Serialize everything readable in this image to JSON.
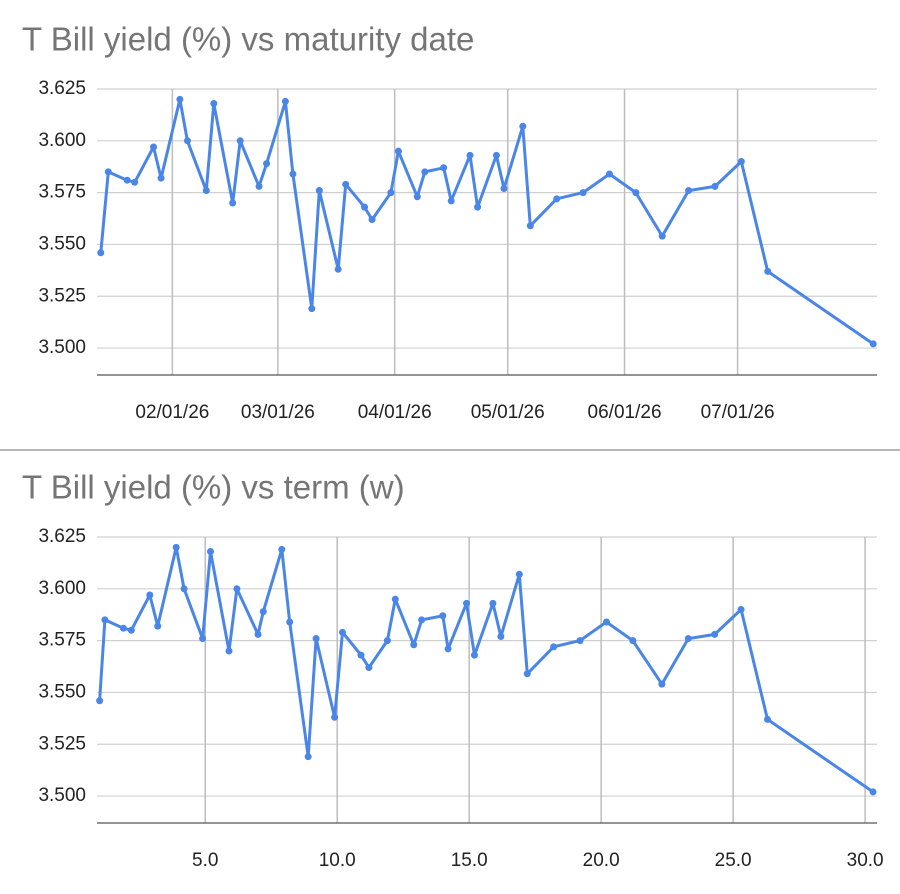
{
  "chart_data": [
    {
      "type": "line",
      "title": "T Bill yield (%) vs maturity date",
      "color": "#4a86e8",
      "x": [
        "2026-01-13",
        "2026-01-15",
        "2026-01-20",
        "2026-01-22",
        "2026-01-27",
        "2026-01-29",
        "2026-02-03",
        "2026-02-05",
        "2026-02-10",
        "2026-02-12",
        "2026-02-17",
        "2026-02-19",
        "2026-02-24",
        "2026-02-26",
        "2026-03-03",
        "2026-03-05",
        "2026-03-10",
        "2026-03-12",
        "2026-03-17",
        "2026-03-19",
        "2026-03-24",
        "2026-03-26",
        "2026-03-31",
        "2026-04-02",
        "2026-04-07",
        "2026-04-09",
        "2026-04-14",
        "2026-04-16",
        "2026-04-21",
        "2026-04-23",
        "2026-04-28",
        "2026-04-30",
        "2026-05-05",
        "2026-05-07",
        "2026-05-14",
        "2026-05-21",
        "2026-05-28",
        "2026-06-04",
        "2026-06-11",
        "2026-06-18",
        "2026-06-25",
        "2026-07-02",
        "2026-07-09",
        "2026-08-06"
      ],
      "values": [
        3.546,
        3.585,
        3.581,
        3.58,
        3.597,
        3.582,
        3.62,
        3.6,
        3.576,
        3.618,
        3.57,
        3.6,
        3.578,
        3.589,
        3.619,
        3.584,
        3.519,
        3.576,
        3.538,
        3.579,
        3.568,
        3.562,
        3.575,
        3.595,
        3.573,
        3.585,
        3.587,
        3.571,
        3.593,
        3.568,
        3.593,
        3.577,
        3.607,
        3.559,
        3.572,
        3.575,
        3.584,
        3.575,
        3.554,
        3.576,
        3.578,
        3.59,
        3.537,
        3.502
      ],
      "xlim": [
        "2026-01-12",
        "2026-08-07"
      ],
      "xticks": [
        {
          "value": "2026-02-01",
          "label": "02/01/26"
        },
        {
          "value": "2026-03-01",
          "label": "03/01/26"
        },
        {
          "value": "2026-04-01",
          "label": "04/01/26"
        },
        {
          "value": "2026-05-01",
          "label": "05/01/26"
        },
        {
          "value": "2026-06-01",
          "label": "06/01/26"
        },
        {
          "value": "2026-07-01",
          "label": "07/01/26"
        }
      ],
      "ylim": [
        3.487,
        3.625
      ],
      "yticks": [
        {
          "value": 3.5,
          "label": "3.500"
        },
        3.525,
        {
          "value": 3.55,
          "label": "3.550"
        },
        3.575,
        {
          "value": 3.6,
          "label": "3.600"
        },
        3.625
      ],
      "grid": true
    },
    {
      "type": "line",
      "title": "T Bill yield (%) vs term (w)",
      "color": "#4a86e8",
      "x": [
        1.0,
        1.2,
        1.9,
        2.2,
        2.9,
        3.2,
        3.9,
        4.2,
        4.9,
        5.2,
        5.9,
        6.2,
        7.0,
        7.2,
        7.9,
        8.2,
        8.9,
        9.2,
        9.9,
        10.2,
        10.9,
        11.2,
        11.9,
        12.2,
        12.9,
        13.2,
        14.0,
        14.2,
        14.9,
        15.2,
        15.9,
        16.2,
        16.9,
        17.2,
        18.2,
        19.2,
        20.2,
        21.2,
        22.3,
        23.3,
        24.3,
        25.3,
        26.3,
        30.3
      ],
      "values": [
        3.546,
        3.585,
        3.581,
        3.58,
        3.597,
        3.582,
        3.62,
        3.6,
        3.576,
        3.618,
        3.57,
        3.6,
        3.578,
        3.589,
        3.619,
        3.584,
        3.519,
        3.576,
        3.538,
        3.579,
        3.568,
        3.562,
        3.575,
        3.595,
        3.573,
        3.585,
        3.587,
        3.571,
        3.593,
        3.568,
        3.593,
        3.577,
        3.607,
        3.559,
        3.572,
        3.575,
        3.584,
        3.575,
        3.554,
        3.576,
        3.578,
        3.59,
        3.537,
        3.502
      ],
      "xlim": [
        0.9,
        30.45
      ],
      "xticks": [
        {
          "value": 5,
          "label": "5.0"
        },
        {
          "value": 10,
          "label": "10.0"
        },
        {
          "value": 15,
          "label": "15.0"
        },
        {
          "value": 20,
          "label": "20.0"
        },
        {
          "value": 25,
          "label": "25.0"
        },
        {
          "value": 30,
          "label": "30.0"
        }
      ],
      "ylim": [
        3.487,
        3.625
      ],
      "yticks": [
        {
          "value": 3.5,
          "label": "3.500"
        },
        3.525,
        {
          "value": 3.55,
          "label": "3.550"
        },
        3.575,
        {
          "value": 3.6,
          "label": "3.600"
        },
        3.625
      ],
      "grid": true
    }
  ]
}
